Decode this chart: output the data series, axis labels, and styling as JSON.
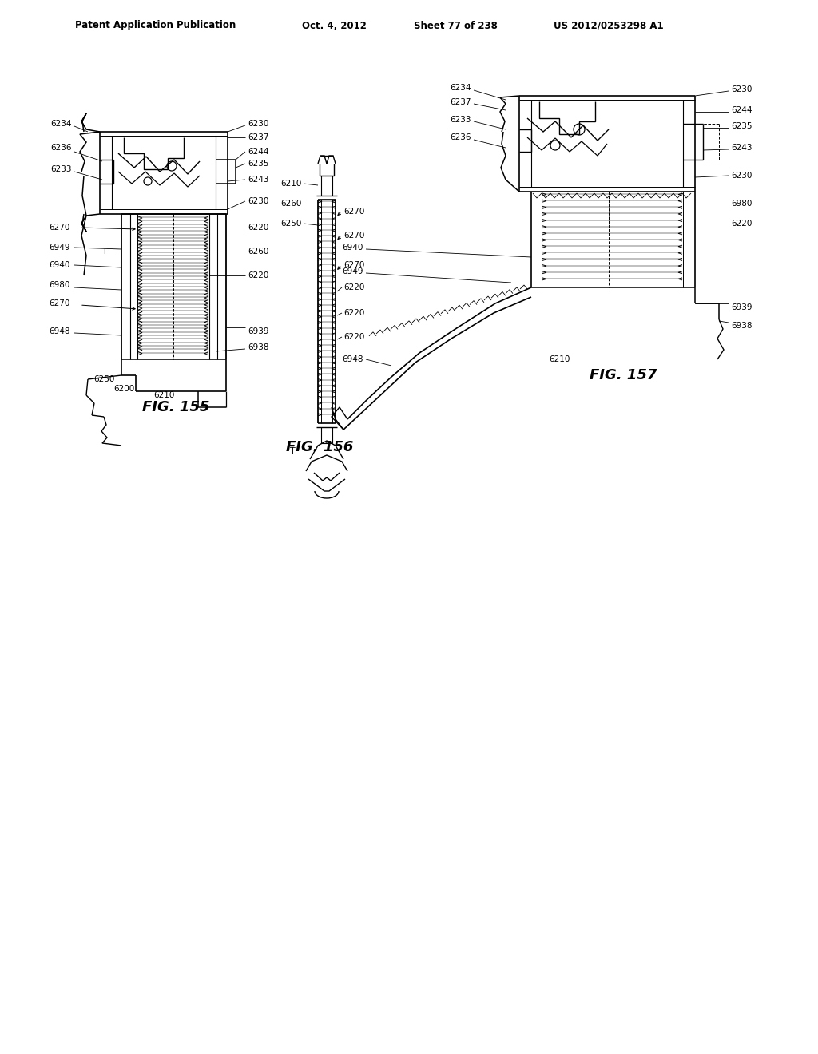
{
  "bg_color": "#ffffff",
  "header_text": "Patent Application Publication",
  "header_date": "Oct. 4, 2012",
  "header_sheet": "Sheet 77 of 238",
  "header_patent": "US 2012/0253298 A1",
  "line_color": "#000000"
}
